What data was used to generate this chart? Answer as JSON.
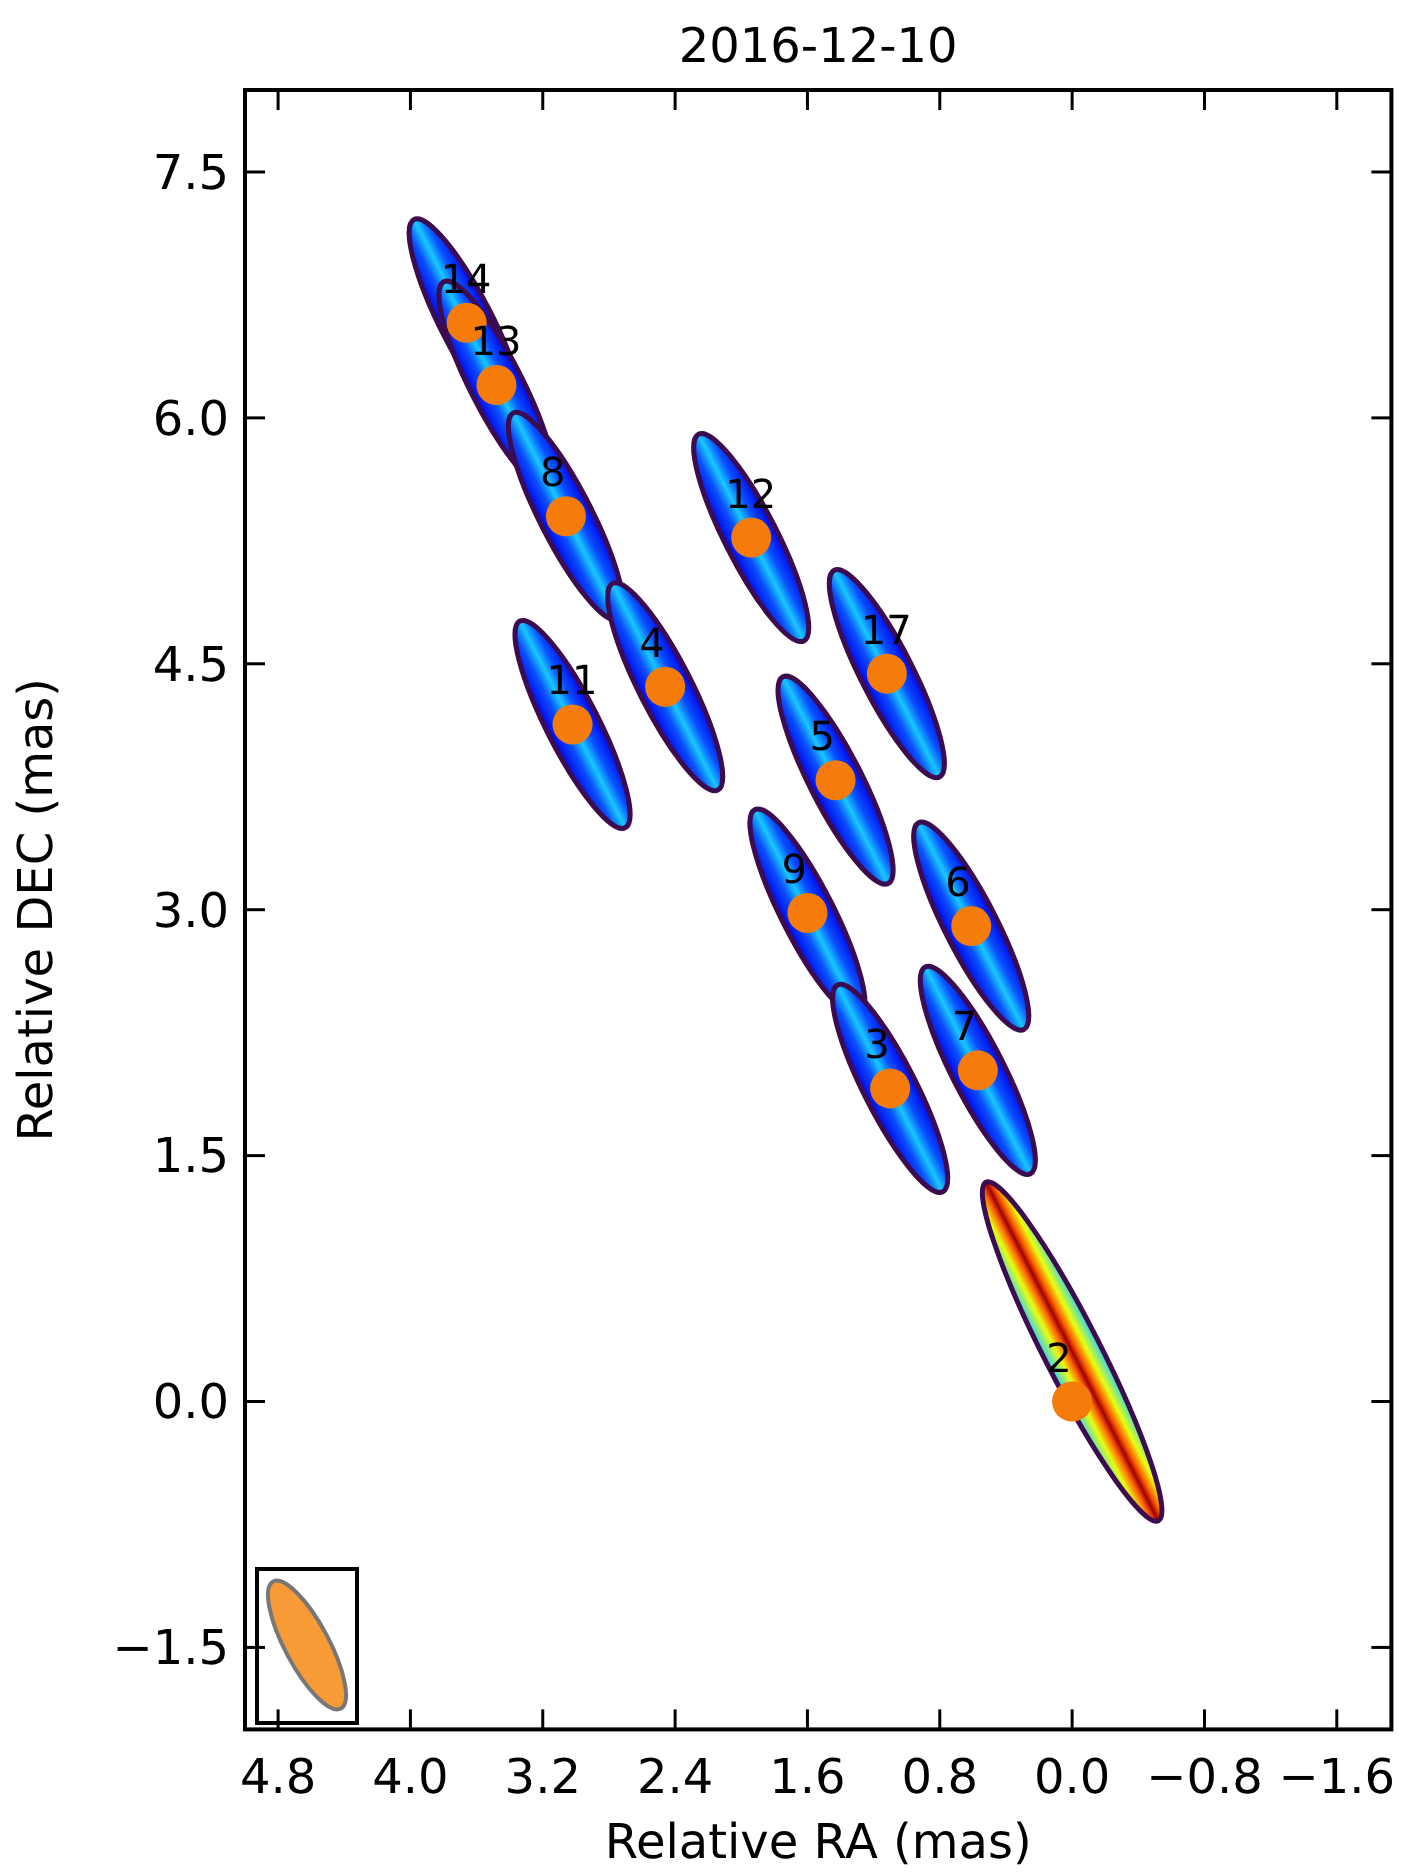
{
  "chart_data": {
    "type": "scatter",
    "title": "2016-12-10",
    "xlabel": "Relative RA (mas)",
    "ylabel": "Relative DEC (mas)",
    "xlim": [
      5.0,
      -1.93
    ],
    "ylim": [
      -2,
      8
    ],
    "xticks": [
      4.8,
      {
        "value": 4.0,
        "label": "4.0"
      },
      3.2,
      2.4,
      1.6,
      0.8,
      {
        "value": 0,
        "label": "0.0"
      },
      {
        "value": -0.8,
        "label": "−0.8"
      },
      {
        "value": -1.6,
        "label": "−1.6"
      }
    ],
    "yticks": [
      {
        "value": -1.5,
        "label": "−1.5"
      },
      {
        "value": 0,
        "label": "0.0"
      },
      1.5,
      {
        "value": 3,
        "label": "3.0"
      },
      4.5,
      {
        "value": 6,
        "label": "6.0"
      },
      7.5
    ],
    "marker": "circle",
    "series": [
      {
        "color": "#f57c0a",
        "x": [
          3.66,
          3.48,
          3.06,
          1.94,
          2.46,
          3.02,
          1.12,
          1.43,
          1.6,
          0.61,
          1.1,
          0.57,
          0
        ],
        "values": [
          6.58,
          6.2,
          5.4,
          5.27,
          4.36,
          4.13,
          4.44,
          3.79,
          2.98,
          2.9,
          1.91,
          2.02,
          0
        ]
      }
    ],
    "annotations": [
      {
        "text": "14",
        "x": 3.66,
        "y": 6.58
      },
      {
        "text": "13",
        "x": 3.48,
        "y": 6.2
      },
      {
        "text": "8",
        "x": 3.06,
        "y": 5.4
      },
      {
        "text": "12",
        "x": 1.94,
        "y": 5.27
      },
      {
        "text": "4",
        "x": 2.46,
        "y": 4.36
      },
      {
        "text": "11",
        "x": 3.02,
        "y": 4.13
      },
      {
        "text": "17",
        "x": 1.12,
        "y": 4.44
      },
      {
        "text": "5",
        "x": 1.43,
        "y": 3.79
      },
      {
        "text": "9",
        "x": 1.6,
        "y": 2.98
      },
      {
        "text": "6",
        "x": 0.61,
        "y": 2.9
      },
      {
        "text": "3",
        "x": 1.1,
        "y": 1.91
      },
      {
        "text": "7",
        "x": 0.57,
        "y": 2.02
      },
      {
        "text": "2",
        "x": 0,
        "y": 0
      }
    ]
  }
}
